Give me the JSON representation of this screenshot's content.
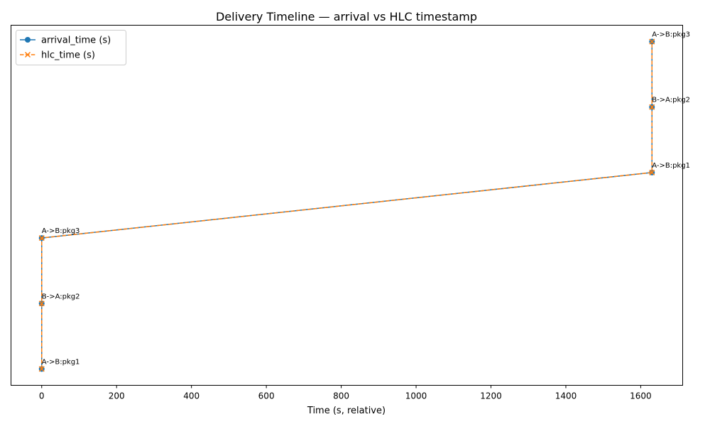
{
  "chart_data": {
    "type": "line",
    "title": "Delivery Timeline — arrival vs HLC timestamp",
    "xlabel": "Time (s, relative)",
    "ylabel": "",
    "xlim": [
      -82,
      1712
    ],
    "ylim": [
      -0.25,
      5.25
    ],
    "xticks": [
      0,
      200,
      400,
      600,
      800,
      1000,
      1200,
      1400,
      1600
    ],
    "yticks_shown": false,
    "grid": false,
    "legend_position": "top-left",
    "series": [
      {
        "name": "arrival_time (s)",
        "color": "#1f77b4",
        "marker": "circle",
        "linestyle": "solid",
        "x": [
          0,
          0,
          0,
          1630,
          1630,
          1630
        ],
        "y": [
          0,
          1,
          2,
          3,
          4,
          5
        ]
      },
      {
        "name": "hlc_time (s)",
        "color": "#ff7f0e",
        "marker": "x",
        "linestyle": "dashed",
        "x": [
          0,
          0,
          0,
          1630,
          1630,
          1630
        ],
        "y": [
          0,
          1,
          2,
          3,
          4,
          5
        ]
      }
    ],
    "annotations": [
      {
        "text": "A->B:pkg1",
        "x": 0,
        "y": 0
      },
      {
        "text": "B->A:pkg2",
        "x": 0,
        "y": 1
      },
      {
        "text": "A->B:pkg3",
        "x": 0,
        "y": 2
      },
      {
        "text": "A->B:pkg1",
        "x": 1630,
        "y": 3
      },
      {
        "text": "B->A:pkg2",
        "x": 1630,
        "y": 4
      },
      {
        "text": "A->B:pkg3",
        "x": 1630,
        "y": 5
      }
    ]
  }
}
